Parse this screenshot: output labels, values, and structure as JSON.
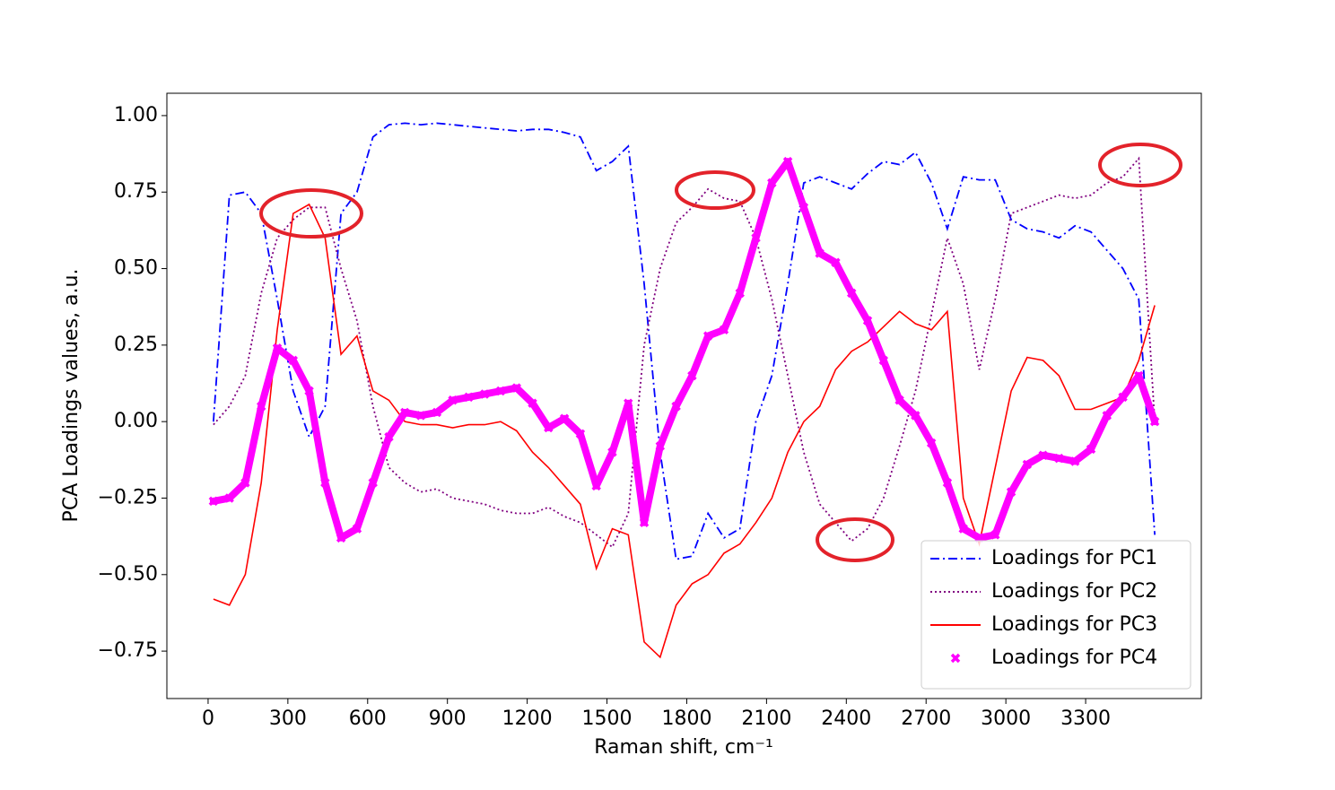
{
  "chart_data": {
    "type": "line",
    "xlabel": "Raman shift, cm⁻¹",
    "ylabel": "PCA Loadings values, a.u.",
    "x": [
      20,
      80,
      140,
      200,
      260,
      320,
      380,
      440,
      500,
      560,
      620,
      680,
      740,
      800,
      860,
      920,
      980,
      1040,
      1100,
      1160,
      1220,
      1280,
      1340,
      1400,
      1460,
      1520,
      1580,
      1640,
      1700,
      1760,
      1820,
      1880,
      1940,
      2000,
      2060,
      2120,
      2180,
      2240,
      2300,
      2360,
      2420,
      2480,
      2540,
      2600,
      2660,
      2720,
      2780,
      2840,
      2900,
      2960,
      3020,
      3080,
      3140,
      3200,
      3260,
      3320,
      3380,
      3440,
      3500,
      3560
    ],
    "xlim": [
      -155,
      3735
    ],
    "xticks": [
      0,
      300,
      600,
      900,
      1200,
      1500,
      1800,
      2100,
      2400,
      2700,
      3000,
      3300
    ],
    "ylim": [
      -0.905,
      1.073
    ],
    "yticks": [
      {
        "value": -0.75,
        "label": "−0.75"
      },
      {
        "value": -0.5,
        "label": "−0.50"
      },
      {
        "value": -0.25,
        "label": "−0.25"
      },
      {
        "value": 0,
        "label": "0.00"
      },
      0.25,
      {
        "value": 0.5,
        "label": "0.50"
      },
      0.75,
      {
        "value": 1,
        "label": "1.00"
      }
    ],
    "grid": false,
    "legend": "lower right",
    "series": [
      {
        "name": "Loadings for PC1",
        "color": "#0000ff",
        "style": "dashdot",
        "values": [
          0.0,
          0.74,
          0.75,
          0.68,
          0.4,
          0.1,
          -0.05,
          0.05,
          0.68,
          0.75,
          0.93,
          0.97,
          0.975,
          0.97,
          0.975,
          0.97,
          0.965,
          0.96,
          0.955,
          0.95,
          0.955,
          0.955,
          0.945,
          0.93,
          0.82,
          0.85,
          0.9,
          0.45,
          -0.1,
          -0.45,
          -0.44,
          -0.3,
          -0.38,
          -0.35,
          0.0,
          0.15,
          0.45,
          0.78,
          0.8,
          0.78,
          0.76,
          0.81,
          0.85,
          0.84,
          0.88,
          0.78,
          0.63,
          0.8,
          0.79,
          0.79,
          0.66,
          0.63,
          0.62,
          0.6,
          0.64,
          0.62,
          0.56,
          0.5,
          0.4,
          -0.37
        ]
      },
      {
        "name": "Loadings for PC2",
        "color": "#800080",
        "style": "dotted",
        "values": [
          -0.01,
          0.05,
          0.15,
          0.42,
          0.6,
          0.66,
          0.7,
          0.7,
          0.5,
          0.33,
          0.05,
          -0.15,
          -0.2,
          -0.23,
          -0.22,
          -0.25,
          -0.26,
          -0.27,
          -0.29,
          -0.3,
          -0.3,
          -0.28,
          -0.31,
          -0.33,
          -0.37,
          -0.41,
          -0.3,
          0.25,
          0.5,
          0.65,
          0.7,
          0.76,
          0.73,
          0.72,
          0.6,
          0.4,
          0.15,
          -0.1,
          -0.27,
          -0.33,
          -0.39,
          -0.35,
          -0.25,
          -0.08,
          0.1,
          0.35,
          0.6,
          0.45,
          0.17,
          0.4,
          0.68,
          0.7,
          0.72,
          0.74,
          0.73,
          0.74,
          0.78,
          0.8,
          0.86,
          0.0
        ]
      },
      {
        "name": "Loadings for PC3",
        "color": "#ff0000",
        "style": "solid",
        "values": [
          -0.58,
          -0.6,
          -0.5,
          -0.2,
          0.3,
          0.68,
          0.71,
          0.6,
          0.22,
          0.28,
          0.1,
          0.07,
          0.0,
          -0.01,
          -0.01,
          -0.02,
          -0.01,
          -0.01,
          0.0,
          -0.03,
          -0.1,
          -0.15,
          -0.21,
          -0.27,
          -0.48,
          -0.35,
          -0.37,
          -0.72,
          -0.77,
          -0.6,
          -0.53,
          -0.5,
          -0.43,
          -0.4,
          -0.33,
          -0.25,
          -0.1,
          0.0,
          0.05,
          0.17,
          0.23,
          0.26,
          0.31,
          0.36,
          0.32,
          0.3,
          0.36,
          -0.25,
          -0.4,
          -0.15,
          0.1,
          0.21,
          0.2,
          0.15,
          0.04,
          0.04,
          0.06,
          0.08,
          0.2,
          0.38
        ]
      },
      {
        "name": "Loadings for PC4",
        "color": "#ff00ff",
        "style": "markers",
        "values": [
          -0.26,
          -0.25,
          -0.2,
          0.05,
          0.24,
          0.2,
          0.1,
          -0.2,
          -0.38,
          -0.35,
          -0.2,
          -0.05,
          0.03,
          0.02,
          0.03,
          0.07,
          0.08,
          0.09,
          0.1,
          0.11,
          0.06,
          -0.02,
          0.01,
          -0.04,
          -0.21,
          -0.1,
          0.06,
          -0.33,
          -0.08,
          0.05,
          0.15,
          0.28,
          0.3,
          0.42,
          0.6,
          0.78,
          0.85,
          0.7,
          0.55,
          0.52,
          0.42,
          0.33,
          0.2,
          0.07,
          0.02,
          -0.07,
          -0.2,
          -0.35,
          -0.38,
          -0.37,
          -0.23,
          -0.14,
          -0.11,
          -0.12,
          -0.13,
          -0.09,
          0.02,
          0.08,
          0.15,
          0.0
        ]
      }
    ]
  }
}
